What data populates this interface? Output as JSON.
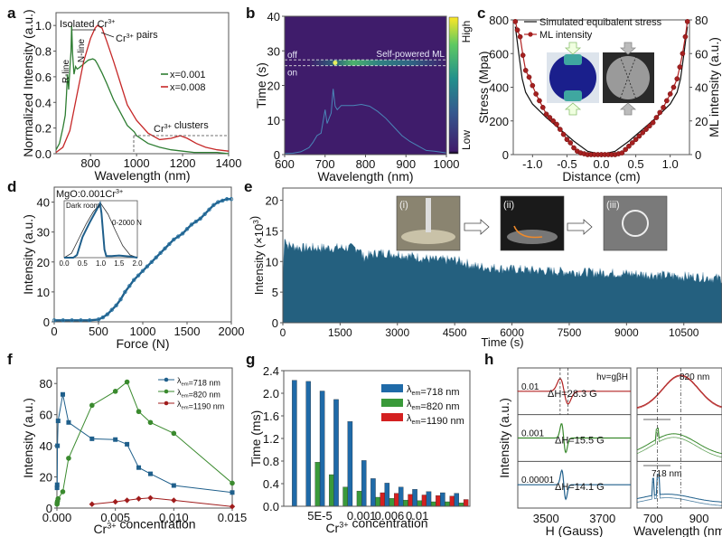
{
  "figure": {
    "panel_letters": [
      "a",
      "b",
      "c",
      "d",
      "e",
      "f",
      "g",
      "h"
    ]
  },
  "chart_data": [
    {
      "id": "a",
      "type": "line",
      "title": "",
      "xlabel": "Wavelength (nm)",
      "ylabel": "Normalized  Intensity (a.u.)",
      "xlim": [
        650,
        1400
      ],
      "ylim": [
        0,
        1.1
      ],
      "xticks": [
        800,
        1000,
        1200,
        1400
      ],
      "yticks": [
        0.0,
        0.2,
        0.4,
        0.6,
        0.8,
        1.0
      ],
      "ytick_labels": [
        "0.0",
        "0.2",
        "0.4",
        "0.6",
        "0.8",
        "1.0"
      ],
      "legend": {
        "placement": "center-right",
        "entries": [
          "x=0.001",
          "x=0.008"
        ]
      },
      "annotations": [
        "Isolated Cr3+",
        "R-line",
        "N-line",
        "Cr3+ pairs",
        "Cr3+ clusters"
      ],
      "series": [
        {
          "name": "x=0.001",
          "color": "#2e7d32",
          "x": [
            650,
            665,
            680,
            690,
            695,
            700,
            705,
            710,
            715,
            718,
            722,
            728,
            735,
            742,
            750,
            770,
            790,
            810,
            820,
            830,
            850,
            870,
            900,
            930,
            960,
            990,
            1000,
            1050,
            1100,
            1150,
            1200,
            1250,
            1300,
            1350,
            1400
          ],
          "y": [
            0.03,
            0.08,
            0.2,
            0.3,
            0.45,
            0.62,
            0.5,
            0.66,
            0.8,
            1.0,
            0.78,
            0.62,
            0.68,
            0.66,
            0.67,
            0.7,
            0.73,
            0.74,
            0.73,
            0.7,
            0.63,
            0.55,
            0.42,
            0.32,
            0.22,
            0.17,
            0.14,
            0.08,
            0.05,
            0.03,
            0.02,
            0.01,
            0.01,
            0.01,
            0.0
          ]
        },
        {
          "name": "x=0.008",
          "color": "#c62828",
          "x": [
            650,
            680,
            710,
            740,
            770,
            800,
            820,
            830,
            850,
            870,
            900,
            930,
            960,
            1000,
            1050,
            1100,
            1150,
            1190,
            1220,
            1260,
            1300,
            1350,
            1400
          ],
          "y": [
            0.01,
            0.05,
            0.18,
            0.45,
            0.72,
            0.9,
            0.98,
            1.0,
            0.98,
            0.88,
            0.72,
            0.55,
            0.38,
            0.26,
            0.16,
            0.11,
            0.12,
            0.14,
            0.12,
            0.08,
            0.05,
            0.03,
            0.02
          ]
        }
      ]
    },
    {
      "id": "b",
      "type": "heatmap",
      "xlabel": "Wavelength (nm)",
      "ylabel": "Time (s)",
      "xlim": [
        600,
        1000
      ],
      "ylim": [
        0,
        40
      ],
      "xticks": [
        600,
        700,
        800,
        900,
        1000
      ],
      "yticks": [
        0,
        10,
        20,
        30,
        40
      ],
      "colorbar": {
        "high_label": "High",
        "low_label": "Low"
      },
      "annotations": [
        "off",
        "on",
        "Self-powered  ML"
      ],
      "on_time": 25.7,
      "off_time": 27.4,
      "overlay_spectrum": {
        "x": [
          600,
          620,
          640,
          660,
          670,
          680,
          690,
          700,
          705,
          710,
          715,
          720,
          725,
          730,
          740,
          750,
          770,
          790,
          810,
          830,
          850,
          870,
          890,
          910,
          930,
          950,
          970,
          1000
        ],
        "y": [
          0.3,
          0.4,
          0.8,
          2.0,
          3.5,
          5.5,
          6.2,
          13.0,
          9.0,
          10.5,
          12.0,
          19.0,
          14.0,
          13.0,
          14.2,
          14.2,
          14.2,
          14.5,
          14.0,
          12.5,
          10.5,
          8.0,
          5.5,
          3.8,
          2.5,
          1.2,
          1.0,
          0.5
        ]
      }
    },
    {
      "id": "c",
      "type": "line",
      "xlabel": "Distance (cm)",
      "ylabel": "Stress (Mpa)",
      "ylabel_right": "ML intensity (a.u.)",
      "xlim": [
        -1.28,
        1.28
      ],
      "ylim": [
        0,
        800
      ],
      "ylim_right": [
        0,
        80
      ],
      "xticks": [
        -1.0,
        -0.5,
        0.0,
        0.5,
        1.0
      ],
      "xtick_labels": [
        "-1.0",
        "-0.5",
        "0.0",
        "0.5",
        "1.0"
      ],
      "yticks": [
        0,
        200,
        400,
        600,
        800
      ],
      "yticks_right": [
        0,
        20,
        40,
        60,
        80
      ],
      "legend": {
        "placement": "top-left",
        "entries": [
          "Simulated equibalent stress",
          "ML intensity"
        ]
      },
      "series": [
        {
          "name": "Simulated equibalent stress",
          "color": "#111111",
          "axis": "left",
          "x": [
            -1.25,
            -1.2,
            -1.15,
            -1.1,
            -1.0,
            -0.8,
            -0.6,
            -0.4,
            -0.2,
            0.0,
            0.2,
            0.4,
            0.6,
            0.8,
            1.0,
            1.1,
            1.15,
            1.2,
            1.25
          ],
          "y": [
            760,
            600,
            450,
            370,
            300,
            220,
            150,
            80,
            20,
            0,
            20,
            80,
            150,
            220,
            300,
            370,
            450,
            600,
            760
          ]
        },
        {
          "name": "ML intensity",
          "color": "#b22222",
          "axis": "right",
          "x": [
            -1.25,
            -1.22,
            -1.18,
            -1.14,
            -1.1,
            -1.05,
            -1.0,
            -0.95,
            -0.9,
            -0.85,
            -0.8,
            -0.75,
            -0.7,
            -0.65,
            -0.6,
            -0.55,
            -0.5,
            -0.45,
            -0.4,
            -0.35,
            -0.3,
            -0.25,
            -0.2,
            -0.15,
            -0.1,
            -0.05,
            0.0,
            0.05,
            0.1,
            0.15,
            0.2,
            0.25,
            0.3,
            0.35,
            0.4,
            0.45,
            0.5,
            0.55,
            0.6,
            0.65,
            0.7,
            0.75,
            0.8,
            0.85,
            0.9,
            0.95,
            1.0,
            1.05,
            1.1,
            1.14,
            1.18,
            1.22,
            1.25
          ],
          "y": [
            79,
            74,
            70,
            59,
            50,
            46,
            41,
            36,
            32,
            28,
            24,
            22,
            20,
            18,
            15,
            12,
            9,
            7,
            4,
            2,
            1,
            0.5,
            0,
            0,
            0,
            0,
            0,
            0,
            0,
            0,
            0,
            0.5,
            1,
            3,
            5,
            7,
            9,
            11,
            13,
            15,
            17,
            19,
            22,
            25,
            28,
            32,
            36,
            40,
            45,
            52,
            60,
            70,
            79
          ]
        }
      ]
    },
    {
      "id": "d",
      "type": "scatter",
      "title": "MgO:0.001Cr3+",
      "xlabel": "Force (N)",
      "ylabel": "Intensity (a.u.)",
      "xlim": [
        0,
        2000
      ],
      "ylim": [
        0,
        45
      ],
      "xticks": [
        0,
        500,
        1000,
        1500,
        2000
      ],
      "yticks": [
        0,
        10,
        20,
        30,
        40
      ],
      "series": [
        {
          "name": "Intensity",
          "color": "#1f5f8b",
          "x": [
            0,
            100,
            200,
            300,
            400,
            500,
            550,
            600,
            650,
            700,
            750,
            800,
            850,
            900,
            950,
            1000,
            1050,
            1100,
            1150,
            1200,
            1250,
            1300,
            1350,
            1400,
            1450,
            1500,
            1550,
            1600,
            1650,
            1700,
            1750,
            1800,
            1850,
            1900,
            1950,
            2000
          ],
          "y": [
            0.5,
            0.5,
            0.5,
            0.5,
            0.5,
            0.8,
            1.5,
            2.5,
            4,
            5.5,
            7.5,
            10,
            12,
            14,
            15.5,
            17,
            18.5,
            20,
            21.5,
            23,
            24.5,
            26,
            27.5,
            28.5,
            29.5,
            31,
            32.5,
            33.5,
            34.5,
            36,
            37.5,
            39,
            40,
            40.5,
            41,
            41
          ]
        }
      ],
      "inset": {
        "labels": [
          "Dark room",
          "0-2000 N"
        ],
        "xlim": [
          0,
          2
        ],
        "xticks": [
          0.0,
          0.5,
          1.0,
          1.5,
          2.0
        ],
        "xtick_labels": [
          "0.0",
          "0.5",
          "1.0",
          "1.5",
          "2.0"
        ],
        "series": [
          {
            "name": "force",
            "color": "#333333",
            "x": [
              0,
              0.2,
              0.4,
              0.6,
              0.8,
              1.0,
              1.2,
              1.4,
              1.6,
              1.8,
              2.0
            ],
            "y": [
              0,
              0.08,
              0.35,
              0.62,
              0.85,
              1.0,
              0.8,
              0.5,
              0.22,
              0.05,
              0
            ]
          },
          {
            "name": "ML",
            "color": "#1f5f8b",
            "x": [
              0,
              0.25,
              0.35,
              0.5,
              0.7,
              0.9,
              0.98,
              1.02,
              1.1,
              1.15,
              1.3,
              1.5,
              1.8,
              2.0
            ],
            "y": [
              0,
              0,
              0.05,
              0.38,
              0.65,
              0.9,
              1.0,
              0.82,
              0.15,
              0.03,
              0.03,
              0.04,
              0.02,
              0
            ]
          }
        ]
      }
    },
    {
      "id": "e",
      "type": "area",
      "xlabel": "Time (s)",
      "ylabel": "Intensity (×10³)",
      "xlim": [
        0,
        11500
      ],
      "ylim": [
        0,
        22
      ],
      "xticks": [
        0,
        1500,
        3000,
        4500,
        6000,
        7500,
        9000,
        10500
      ],
      "yticks": [
        0,
        5,
        10,
        15,
        20
      ],
      "color": "#24607f",
      "series": [
        {
          "name": "ML intensity",
          "x": [
            0,
            50,
            100,
            500,
            1000,
            1500,
            2000,
            2100,
            2500,
            3000,
            3500,
            4000,
            4500,
            4800,
            5000,
            6000,
            7000,
            8000,
            9000,
            10000,
            11000,
            11500
          ],
          "y": [
            7,
            14.5,
            12.5,
            12,
            12,
            12,
            12,
            10.5,
            11.2,
            11,
            10.5,
            10,
            10,
            9.5,
            9,
            8.5,
            8.2,
            8,
            7.8,
            7.5,
            7.2,
            7
          ]
        }
      ],
      "insets": [
        {
          "label": "(i)"
        },
        {
          "label": "(ii)"
        },
        {
          "label": "(iii)"
        }
      ]
    },
    {
      "id": "f",
      "type": "line",
      "xlabel": "Cr3+ concentration",
      "ylabel": "Intensity (a.u.)",
      "xlim": [
        0,
        0.015
      ],
      "ylim": [
        0,
        90
      ],
      "xticks": [
        0.0,
        0.005,
        0.01,
        0.015
      ],
      "xtick_labels": [
        "0.000",
        "0.005",
        "0.010",
        "0.015"
      ],
      "yticks": [
        0,
        20,
        40,
        60,
        80
      ],
      "legend": {
        "placement": "top-right",
        "entries": [
          "λem=718 nm",
          "λem=820 nm",
          "λem=1190 nm"
        ]
      },
      "series": [
        {
          "name": "λem=718 nm",
          "color": "#1f5f8b",
          "marker": "square",
          "x": [
            1e-05,
            2e-05,
            5e-05,
            0.0001,
            0.0005,
            0.001,
            0.003,
            0.005,
            0.006,
            0.007,
            0.008,
            0.01,
            0.015
          ],
          "y": [
            13,
            15,
            40,
            56,
            73,
            55,
            44.5,
            44,
            41,
            26,
            22,
            14.5,
            10
          ]
        },
        {
          "name": "λem=820 nm",
          "color": "#3a8a2e",
          "marker": "circle",
          "x": [
            1e-05,
            2e-05,
            5e-05,
            0.0001,
            0.0005,
            0.001,
            0.003,
            0.005,
            0.006,
            0.007,
            0.008,
            0.01,
            0.015
          ],
          "y": [
            2.5,
            3.5,
            4.5,
            6,
            10.5,
            32,
            66,
            75,
            81,
            62,
            55,
            48,
            16
          ]
        },
        {
          "name": "λem=1190 nm",
          "color": "#a01c1c",
          "marker": "diamond",
          "x": [
            0.003,
            0.005,
            0.006,
            0.007,
            0.008,
            0.01,
            0.015
          ],
          "y": [
            2.5,
            4,
            5,
            6,
            6.5,
            5,
            1
          ]
        }
      ]
    },
    {
      "id": "g",
      "type": "bar",
      "xlabel": "Cr3+ concentration",
      "ylabel": "Time (ms)",
      "ylim": [
        0,
        2.4
      ],
      "yticks": [
        0.0,
        0.4,
        0.8,
        1.2,
        1.6,
        2.0,
        2.4
      ],
      "ytick_labels": [
        "0.0",
        "0.4",
        "0.8",
        "1.2",
        "1.6",
        "2.0",
        "2.4"
      ],
      "xtick_labels": [
        {
          "group": 2,
          "label": "5E-5"
        },
        {
          "group": 5,
          "label": "0.001"
        },
        {
          "group": 7,
          "label": "0.006"
        },
        {
          "group": 9,
          "label": "0.01"
        }
      ],
      "legend": {
        "placement": "top-right",
        "entries": [
          "λem=718 nm",
          "λem=820 nm",
          "λem=1190 nm"
        ]
      },
      "categories": [
        "g1",
        "g2",
        "g3",
        "g4",
        "g5",
        "g6",
        "g7",
        "g8",
        "g9",
        "g10",
        "g11",
        "g12",
        "g13"
      ],
      "series": [
        {
          "name": "λem=718 nm",
          "color": "#1f6aa8",
          "values": [
            2.23,
            2.21,
            2.04,
            1.89,
            1.5,
            0.81,
            0.49,
            0.41,
            0.34,
            0.3,
            0.26,
            0.24,
            0.23
          ]
        },
        {
          "name": "λem=820 nm",
          "color": "#3a9a3a",
          "values": [
            null,
            null,
            0.78,
            0.56,
            0.34,
            0.27,
            0.16,
            0.14,
            0.11,
            0.1,
            0.08,
            0.08,
            0.06
          ]
        },
        {
          "name": "λem=1190 nm",
          "color": "#d42020",
          "values": [
            null,
            null,
            null,
            null,
            null,
            null,
            0.24,
            0.23,
            0.21,
            0.2,
            0.19,
            0.18,
            0.12
          ]
        }
      ]
    },
    {
      "id": "h",
      "type": "line",
      "ylabel": "Intensity (a.u.)",
      "left": {
        "xlabel": "H (Gauss)",
        "xlim": [
          3400,
          3800
        ],
        "xticks": [
          3500,
          3700
        ],
        "header": "hν=gβH",
        "rows": [
          {
            "concentration": "0.01",
            "linewidth": "ΔH=28.3 G",
            "color": "#b22222",
            "peak": 3550,
            "trough": 3578
          },
          {
            "concentration": "0.001",
            "linewidth": "ΔH=15.5 G",
            "color": "#3a8a2e",
            "peak": 3555,
            "trough": 3570
          },
          {
            "concentration": "0.00001",
            "linewidth": "ΔH=14.1 G",
            "color": "#1f5f8b",
            "peak": 3556,
            "trough": 3570
          }
        ]
      },
      "right": {
        "xlabel": "Wavelength (nm)",
        "xlim": [
          630,
          1000
        ],
        "xticks": [
          700,
          900
        ],
        "markers": [
          "820 nm",
          "718 nm"
        ],
        "rows": [
          {
            "concentration": "0.01",
            "color": "#b22222"
          },
          {
            "concentration": "0.001",
            "color": "#3a8a2e"
          },
          {
            "concentration": "0.00001",
            "color": "#1f5f8b"
          }
        ]
      }
    }
  ]
}
